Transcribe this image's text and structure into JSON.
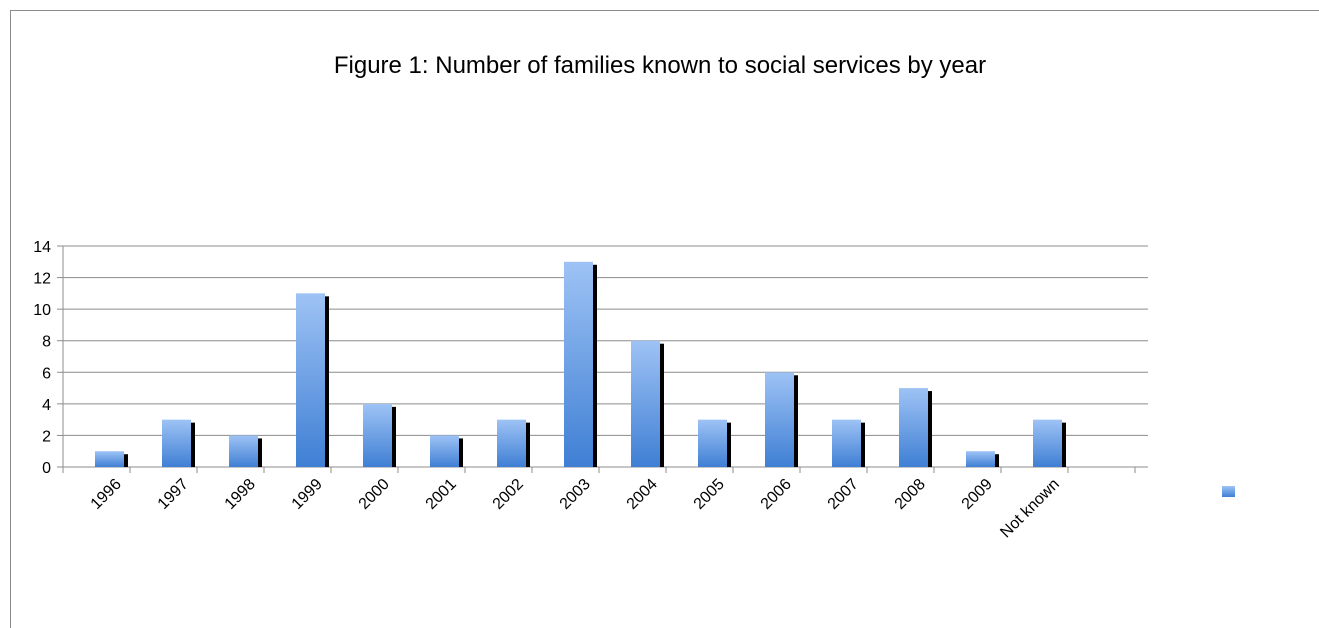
{
  "chart_data": {
    "type": "bar",
    "title": "Figure 1: Number of families known to social services by year",
    "categories": [
      "1996",
      "1997",
      "1998",
      "1999",
      "2000",
      "2001",
      "2002",
      "2003",
      "2004",
      "2005",
      "2006",
      "2007",
      "2008",
      "2009",
      "Not known"
    ],
    "values": [
      1,
      3,
      2,
      11,
      4,
      2,
      3,
      13,
      8,
      3,
      6,
      3,
      5,
      1,
      3
    ],
    "ylim": [
      0,
      14
    ],
    "yticks": [
      0,
      2,
      4,
      6,
      8,
      10,
      12,
      14
    ],
    "grid": true,
    "legend": "right",
    "legend_entries": [
      ""
    ],
    "colors": {
      "bar_top": "#9ec3f5",
      "bar_bottom": "#3f7fd4",
      "shadow": "#000000",
      "grid": "#8c8c8c",
      "axis": "#8c8c8c"
    }
  }
}
